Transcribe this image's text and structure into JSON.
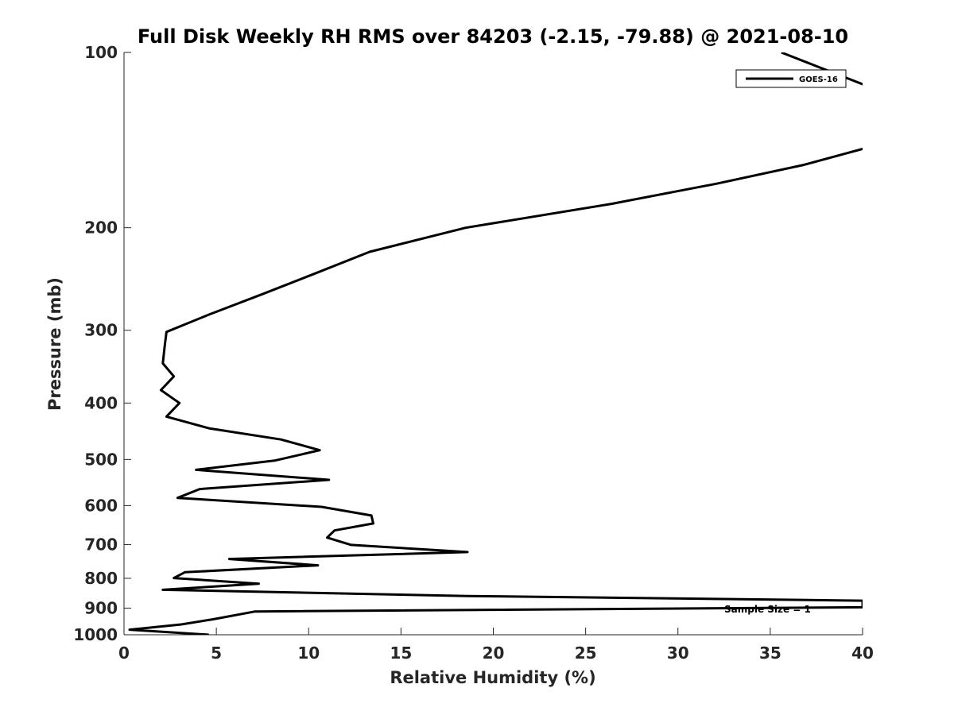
{
  "chart_data": {
    "type": "line",
    "title": "Full Disk Weekly RH RMS over 84203 (-2.15, -79.88) @ 2021-08-10",
    "xlabel": "Relative Humidity (%)",
    "ylabel": "Pressure (mb)",
    "xlim": [
      0,
      40
    ],
    "ylim": [
      100,
      1000
    ],
    "y_scale": "log",
    "y_reversed": true,
    "x_ticks": [
      0,
      5,
      10,
      15,
      20,
      25,
      30,
      35,
      40
    ],
    "y_ticks": [
      100,
      200,
      300,
      400,
      500,
      600,
      700,
      800,
      900,
      1000
    ],
    "grid": false,
    "legend_position": "top-right",
    "annotation": "Sample Size = 1",
    "series": [
      {
        "name": "GOES-16",
        "color": "#000000",
        "points": [
          [
            35.6,
            100
          ],
          [
            40.5,
            115
          ],
          [
            40.5,
            145
          ],
          [
            36.8,
            156
          ],
          [
            32.1,
            168
          ],
          [
            26.4,
            182
          ],
          [
            18.5,
            200
          ],
          [
            13.3,
            220
          ],
          [
            10.3,
            240
          ],
          [
            7.5,
            260
          ],
          [
            4.6,
            282
          ],
          [
            2.3,
            302
          ],
          [
            2.2,
            320
          ],
          [
            2.1,
            342
          ],
          [
            2.7,
            360
          ],
          [
            2.0,
            380
          ],
          [
            3.0,
            400
          ],
          [
            2.3,
            422
          ],
          [
            4.6,
            442
          ],
          [
            8.5,
            462
          ],
          [
            10.6,
            482
          ],
          [
            8.2,
            502
          ],
          [
            3.9,
            521
          ],
          [
            11.1,
            542
          ],
          [
            4.1,
            562
          ],
          [
            2.9,
            582
          ],
          [
            10.7,
            603
          ],
          [
            13.4,
            624
          ],
          [
            13.5,
            644
          ],
          [
            11.4,
            662
          ],
          [
            11.0,
            681
          ],
          [
            12.3,
            701
          ],
          [
            18.6,
            721
          ],
          [
            5.7,
            741
          ],
          [
            10.5,
            760
          ],
          [
            3.3,
            781
          ],
          [
            2.7,
            799
          ],
          [
            7.3,
            817
          ],
          [
            2.1,
            837
          ],
          [
            18.6,
            858
          ],
          [
            40.0,
            874
          ],
          [
            40.0,
            897
          ],
          [
            7.1,
            912
          ],
          [
            4.8,
            941
          ],
          [
            3.1,
            960
          ],
          [
            0.3,
            980
          ],
          [
            4.6,
            1000
          ]
        ]
      }
    ]
  }
}
